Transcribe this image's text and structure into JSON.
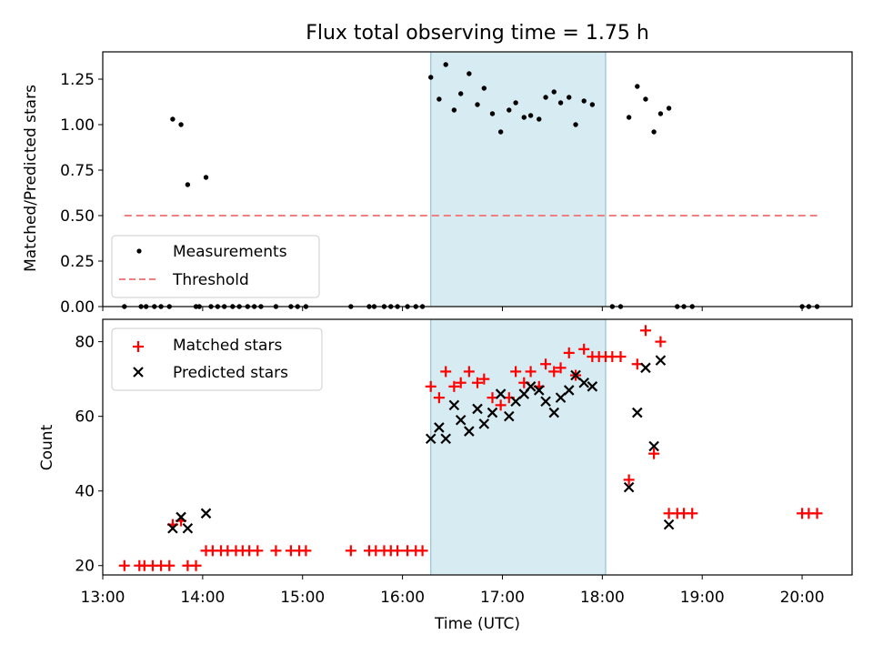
{
  "chart_data": [
    {
      "type": "scatter",
      "title": "Flux total observing time = 1.75 h",
      "xlabel": "",
      "ylabel": "Matched/Predicted stars",
      "xlim": [
        "13:00",
        "20:30"
      ],
      "ylim": [
        0,
        1.4
      ],
      "yticks": [
        "0.00",
        "0.25",
        "0.50",
        "0.75",
        "1.00",
        "1.25"
      ],
      "shaded_span": [
        "16:17",
        "18:02"
      ],
      "shaded_color": "#add8e6",
      "legend_position": "lower-left",
      "series": [
        {
          "name": "Measurements",
          "marker": "dot",
          "color": "#000000",
          "points": [
            [
              "13:13",
              0
            ],
            [
              "13:23",
              0
            ],
            [
              "13:26",
              0
            ],
            [
              "13:31",
              0
            ],
            [
              "13:35",
              0
            ],
            [
              "13:40",
              0
            ],
            [
              "13:42",
              1.03
            ],
            [
              "13:47",
              1.0
            ],
            [
              "13:51",
              0.67
            ],
            [
              "14:02",
              0.71
            ],
            [
              "13:56",
              0
            ],
            [
              "13:58",
              0
            ],
            [
              "14:05",
              0
            ],
            [
              "14:09",
              0
            ],
            [
              "14:13",
              0
            ],
            [
              "14:18",
              0
            ],
            [
              "14:22",
              0
            ],
            [
              "14:27",
              0
            ],
            [
              "14:31",
              0
            ],
            [
              "14:35",
              0
            ],
            [
              "14:44",
              0
            ],
            [
              "14:53",
              0
            ],
            [
              "14:57",
              0
            ],
            [
              "15:02",
              0
            ],
            [
              "15:29",
              0
            ],
            [
              "15:40",
              0
            ],
            [
              "15:43",
              0
            ],
            [
              "15:49",
              0
            ],
            [
              "15:53",
              0
            ],
            [
              "15:57",
              0
            ],
            [
              "16:03",
              0
            ],
            [
              "16:08",
              0
            ],
            [
              "16:12",
              0
            ],
            [
              "16:17",
              1.26
            ],
            [
              "16:22",
              1.14
            ],
            [
              "16:26",
              1.33
            ],
            [
              "16:31",
              1.08
            ],
            [
              "16:35",
              1.17
            ],
            [
              "16:40",
              1.28
            ],
            [
              "16:45",
              1.11
            ],
            [
              "16:49",
              1.2
            ],
            [
              "16:54",
              1.06
            ],
            [
              "16:59",
              0.96
            ],
            [
              "17:04",
              1.08
            ],
            [
              "17:08",
              1.12
            ],
            [
              "17:13",
              1.04
            ],
            [
              "17:17",
              1.05
            ],
            [
              "17:22",
              1.03
            ],
            [
              "17:26",
              1.15
            ],
            [
              "17:31",
              1.18
            ],
            [
              "17:35",
              1.12
            ],
            [
              "17:40",
              1.15
            ],
            [
              "17:44",
              1.0
            ],
            [
              "17:49",
              1.13
            ],
            [
              "17:54",
              1.11
            ],
            [
              "18:06",
              0
            ],
            [
              "18:11",
              0
            ],
            [
              "18:16",
              1.04
            ],
            [
              "18:21",
              1.21
            ],
            [
              "18:26",
              1.14
            ],
            [
              "18:31",
              0.96
            ],
            [
              "18:35",
              1.06
            ],
            [
              "18:40",
              1.09
            ],
            [
              "18:45",
              0
            ],
            [
              "18:49",
              0
            ],
            [
              "18:54",
              0
            ],
            [
              "20:00",
              0
            ],
            [
              "20:04",
              0
            ],
            [
              "20:09",
              0
            ]
          ]
        },
        {
          "name": "Threshold",
          "style": "dashed-line",
          "color": "#f08080",
          "points": [
            [
              "13:13",
              0.5
            ],
            [
              "20:09",
              0.5
            ]
          ]
        }
      ]
    },
    {
      "type": "scatter",
      "title": "",
      "xlabel": "Time (UTC)",
      "ylabel": "Count",
      "xlim": [
        "13:00",
        "20:30"
      ],
      "ylim": [
        17.5,
        86
      ],
      "yticks": [
        "20",
        "40",
        "60",
        "80"
      ],
      "xticks": [
        "13:00",
        "14:00",
        "15:00",
        "16:00",
        "17:00",
        "18:00",
        "19:00",
        "20:00"
      ],
      "shaded_span": [
        "16:17",
        "18:02"
      ],
      "shaded_color": "#add8e6",
      "legend_position": "upper-left",
      "series": [
        {
          "name": "Matched stars",
          "marker": "plus",
          "color": "#ff0000",
          "points": [
            [
              "13:13",
              20
            ],
            [
              "13:22",
              20
            ],
            [
              "13:25",
              20
            ],
            [
              "13:30",
              20
            ],
            [
              "13:35",
              20
            ],
            [
              "13:40",
              20
            ],
            [
              "13:42",
              31
            ],
            [
              "13:47",
              32
            ],
            [
              "13:51",
              20
            ],
            [
              "13:56",
              20
            ],
            [
              "14:02",
              24
            ],
            [
              "14:06",
              24
            ],
            [
              "14:11",
              24
            ],
            [
              "14:15",
              24
            ],
            [
              "14:20",
              24
            ],
            [
              "14:24",
              24
            ],
            [
              "14:28",
              24
            ],
            [
              "14:33",
              24
            ],
            [
              "14:44",
              24
            ],
            [
              "14:53",
              24
            ],
            [
              "14:58",
              24
            ],
            [
              "15:02",
              24
            ],
            [
              "15:29",
              24
            ],
            [
              "15:40",
              24
            ],
            [
              "15:44",
              24
            ],
            [
              "15:49",
              24
            ],
            [
              "15:53",
              24
            ],
            [
              "15:57",
              24
            ],
            [
              "16:03",
              24
            ],
            [
              "16:08",
              24
            ],
            [
              "16:12",
              24
            ],
            [
              "16:17",
              68
            ],
            [
              "16:22",
              65
            ],
            [
              "16:26",
              72
            ],
            [
              "16:31",
              68
            ],
            [
              "16:35",
              69
            ],
            [
              "16:40",
              72
            ],
            [
              "16:45",
              69
            ],
            [
              "16:49",
              70
            ],
            [
              "16:54",
              65
            ],
            [
              "16:59",
              63
            ],
            [
              "17:04",
              65
            ],
            [
              "17:08",
              72
            ],
            [
              "17:13",
              69
            ],
            [
              "17:17",
              72
            ],
            [
              "17:22",
              68
            ],
            [
              "17:26",
              74
            ],
            [
              "17:31",
              72
            ],
            [
              "17:35",
              73
            ],
            [
              "17:40",
              77
            ],
            [
              "17:44",
              71
            ],
            [
              "17:49",
              78
            ],
            [
              "17:54",
              76
            ],
            [
              "17:58",
              76
            ],
            [
              "18:02",
              76
            ],
            [
              "18:06",
              76
            ],
            [
              "18:11",
              76
            ],
            [
              "18:16",
              43
            ],
            [
              "18:21",
              74
            ],
            [
              "18:26",
              83
            ],
            [
              "18:31",
              50
            ],
            [
              "18:35",
              80
            ],
            [
              "18:40",
              34
            ],
            [
              "18:45",
              34
            ],
            [
              "18:49",
              34
            ],
            [
              "18:54",
              34
            ],
            [
              "20:00",
              34
            ],
            [
              "20:04",
              34
            ],
            [
              "20:09",
              34
            ]
          ]
        },
        {
          "name": "Predicted stars",
          "marker": "x",
          "color": "#000000",
          "points": [
            [
              "13:42",
              30
            ],
            [
              "13:47",
              33
            ],
            [
              "13:51",
              30
            ],
            [
              "14:02",
              34
            ],
            [
              "16:17",
              54
            ],
            [
              "16:22",
              57
            ],
            [
              "16:26",
              54
            ],
            [
              "16:31",
              63
            ],
            [
              "16:35",
              59
            ],
            [
              "16:40",
              56
            ],
            [
              "16:45",
              62
            ],
            [
              "16:49",
              58
            ],
            [
              "16:54",
              61
            ],
            [
              "16:59",
              66
            ],
            [
              "17:04",
              60
            ],
            [
              "17:08",
              64
            ],
            [
              "17:13",
              66
            ],
            [
              "17:17",
              68
            ],
            [
              "17:22",
              67
            ],
            [
              "17:26",
              64
            ],
            [
              "17:31",
              61
            ],
            [
              "17:35",
              65
            ],
            [
              "17:40",
              67
            ],
            [
              "17:44",
              71
            ],
            [
              "17:49",
              69
            ],
            [
              "17:54",
              68
            ],
            [
              "18:16",
              41
            ],
            [
              "18:21",
              61
            ],
            [
              "18:26",
              73
            ],
            [
              "18:31",
              52
            ],
            [
              "18:35",
              75
            ],
            [
              "18:40",
              31
            ]
          ]
        }
      ]
    }
  ]
}
